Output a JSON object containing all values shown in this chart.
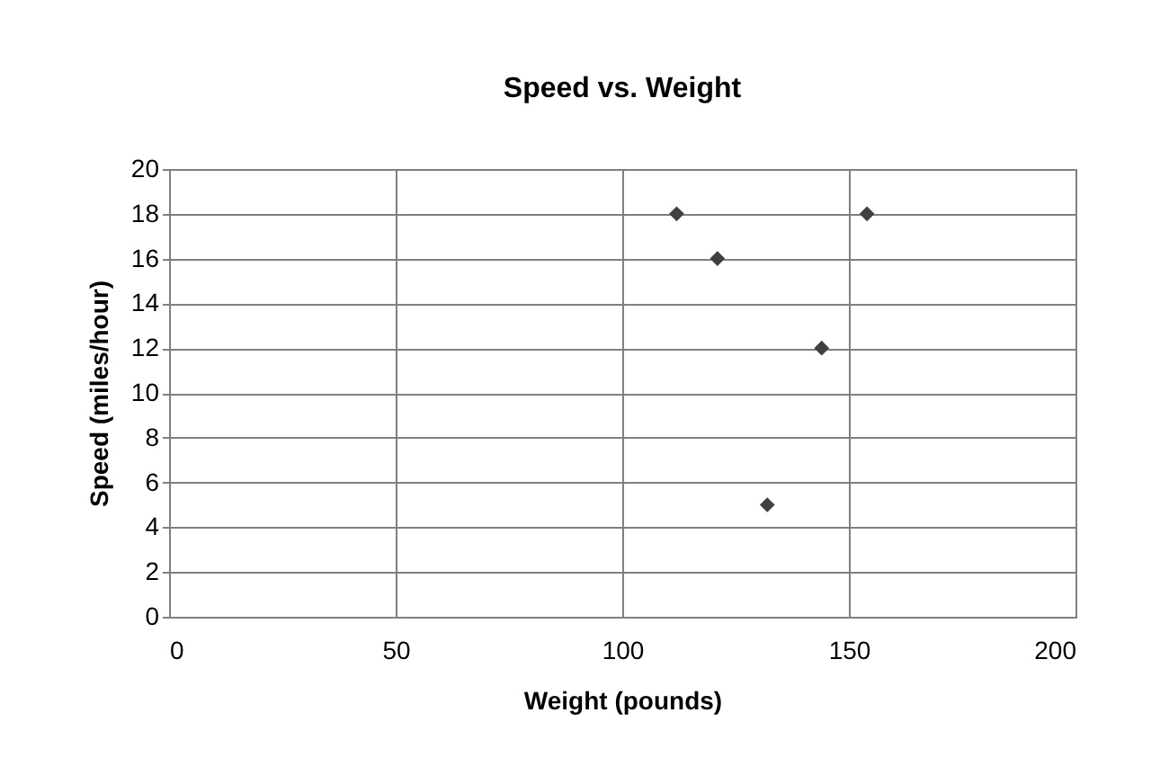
{
  "chart_data": {
    "type": "scatter",
    "title": "Speed vs. Weight",
    "xlabel": "Weight (pounds)",
    "ylabel": "Speed (miles/hour)",
    "x": [
      112,
      121,
      144,
      154,
      132
    ],
    "series": [
      {
        "color": "#404040",
        "values": [
          18,
          16,
          12,
          18,
          5
        ]
      }
    ],
    "xlim": [
      0,
      200
    ],
    "xticks": [
      0,
      50,
      100,
      150,
      200
    ],
    "ylim": [
      0,
      20
    ],
    "yticks": [
      0,
      2,
      4,
      6,
      8,
      10,
      12,
      14,
      16,
      18,
      20
    ],
    "grid": true,
    "marker": "diamond",
    "legend": false
  }
}
